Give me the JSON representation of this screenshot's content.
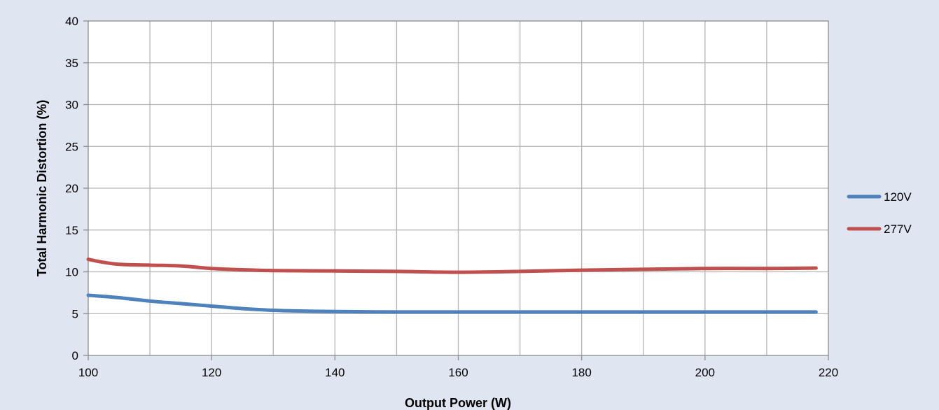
{
  "chart_data": {
    "type": "line",
    "title": "",
    "xlabel": "Output Power (W)",
    "ylabel": "Total Harmonic Distortion (%)",
    "xlim": [
      100,
      220
    ],
    "ylim": [
      0,
      40
    ],
    "x_ticks": [
      100,
      120,
      140,
      160,
      180,
      200,
      220
    ],
    "y_ticks": [
      0,
      5,
      10,
      15,
      20,
      25,
      30,
      35,
      40
    ],
    "x_tick_labels": [
      "100",
      "120",
      "140",
      "160",
      "180",
      "200",
      "220"
    ],
    "y_tick_labels": [
      "0",
      "5",
      "10",
      "15",
      "20",
      "25",
      "30",
      "35",
      "40"
    ],
    "grid_x_step": 10,
    "grid_y_step": 5,
    "grid": true,
    "legend_position": "right",
    "series": [
      {
        "name": "120V",
        "color": "#4f81bd",
        "x": [
          100,
          105,
          110,
          115,
          120,
          125,
          130,
          135,
          140,
          150,
          160,
          170,
          180,
          190,
          200,
          210,
          218
        ],
        "y": [
          7.2,
          6.9,
          6.5,
          6.2,
          5.9,
          5.6,
          5.4,
          5.3,
          5.25,
          5.2,
          5.2,
          5.2,
          5.2,
          5.2,
          5.2,
          5.2,
          5.2
        ]
      },
      {
        "name": "277V",
        "color": "#c0504d",
        "x": [
          100,
          102,
          105,
          110,
          115,
          120,
          125,
          130,
          140,
          150,
          160,
          170,
          180,
          190,
          200,
          210,
          218
        ],
        "y": [
          11.5,
          11.2,
          10.9,
          10.8,
          10.7,
          10.4,
          10.25,
          10.15,
          10.1,
          10.05,
          9.95,
          10.05,
          10.2,
          10.3,
          10.4,
          10.4,
          10.45
        ]
      }
    ]
  }
}
